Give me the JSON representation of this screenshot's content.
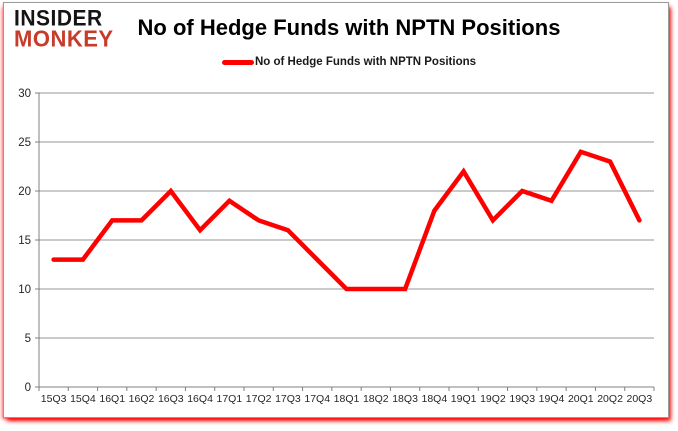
{
  "logo": {
    "line1": "INSIDER",
    "line2": "MONKEY",
    "line1_color": "#141414",
    "line2_color": "#c73b2a"
  },
  "header": {
    "title": "No of Hedge Funds with NPTN Positions"
  },
  "legend": {
    "label": "No of Hedge Funds with NPTN Positions",
    "marker_color": "#ff0000"
  },
  "colors": {
    "series_line": "#ff0000",
    "gridline": "#949494",
    "axis": "#808080",
    "tick_label": "#262626",
    "card_border": "#9a9a9a",
    "card_shadow": "#ff0000",
    "background": "#ffffff"
  },
  "chart_data": {
    "type": "line",
    "title": "No of Hedge Funds with NPTN Positions",
    "categories": [
      "15Q3",
      "15Q4",
      "16Q1",
      "16Q2",
      "16Q3",
      "16Q4",
      "17Q1",
      "17Q2",
      "17Q3",
      "17Q4",
      "18Q1",
      "18Q2",
      "18Q3",
      "18Q4",
      "19Q1",
      "19Q2",
      "19Q3",
      "19Q4",
      "20Q1",
      "20Q2",
      "20Q3"
    ],
    "series": [
      {
        "name": "No of Hedge Funds with NPTN Positions",
        "color": "#ff0000",
        "values": [
          13,
          13,
          17,
          17,
          20,
          16,
          19,
          17,
          16,
          13,
          10,
          10,
          10,
          18,
          22,
          17,
          20,
          19,
          24,
          23,
          17
        ]
      }
    ],
    "xlabel": "",
    "ylabel": "",
    "ylim": [
      0,
      30
    ],
    "yticks": [
      0,
      5,
      10,
      15,
      20,
      25,
      30
    ],
    "grid": true,
    "legend_position": "top-center"
  }
}
